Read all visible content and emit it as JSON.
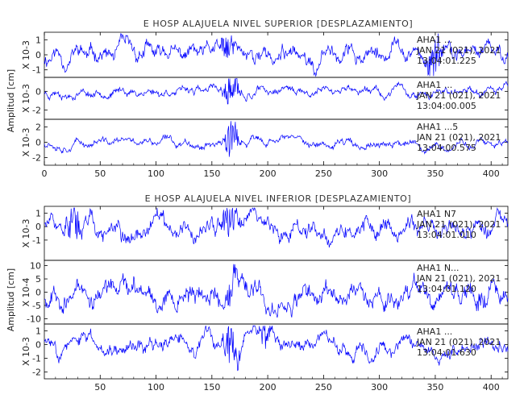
{
  "chart_data": [
    {
      "type": "line",
      "title": "E HOSP ALAJUELA NIVEL SUPERIOR [DESPLAZAMIENTO]",
      "ylabel": "Amplitud [cm]",
      "xlim": [
        0,
        415
      ],
      "xticks": [
        0,
        50,
        100,
        150,
        200,
        250,
        300,
        350,
        400
      ],
      "series_color": "#0000ff",
      "panels": [
        {
          "scale_label": "X 10-3",
          "ylim": [
            -1.5,
            1.5
          ],
          "yticks": [
            1,
            0,
            -1
          ],
          "annotation": [
            "AHA1 ...",
            "JAN 21 (021), 2021",
            "13:04:01.225"
          ],
          "events": [
            {
              "t": 162,
              "amp": 0.9
            },
            {
              "t": 347,
              "amp": 1.5
            }
          ],
          "base_amp": 0.45,
          "seed": 11
        },
        {
          "scale_label": "X 10-3",
          "ylim": [
            -3,
            1.5
          ],
          "yticks": [
            0,
            -2
          ],
          "annotation": [
            "AHA1 ...",
            "JAN 21 (021), 2021",
            "13:04:00.005"
          ],
          "events": [
            {
              "t": 165,
              "amp": 2.2
            }
          ],
          "base_amp": 0.35,
          "seed": 23
        },
        {
          "scale_label": "X 10-3",
          "ylim": [
            -3,
            3
          ],
          "yticks": [
            2,
            0,
            -2
          ],
          "annotation": [
            "AHA1 ...5",
            "JAN 21 (021), 2021",
            "13:04:00.575"
          ],
          "events": [
            {
              "t": 165,
              "amp": 2.8
            }
          ],
          "base_amp": 0.4,
          "seed": 37
        }
      ]
    },
    {
      "type": "line",
      "title": "E HOSP ALAJUELA NIVEL INFERIOR [DESPLAZAMIENTO]",
      "ylabel": "Amplitud [cm]",
      "xlim": [
        0,
        415
      ],
      "xticks": [
        50,
        100,
        150,
        200,
        250,
        300,
        350,
        400
      ],
      "series_color": "#0000ff",
      "panels": [
        {
          "scale_label": "X 10-3",
          "ylim": [
            -2.5,
            1.5
          ],
          "yticks": [
            1,
            0,
            -1
          ],
          "annotation": [
            "AHA1 N7",
            "JAN 21 (021), 2021",
            "13:04:01.010"
          ],
          "events": [
            {
              "t": 165,
              "amp": 1.7
            },
            {
              "t": 24,
              "amp": 1.2
            }
          ],
          "base_amp": 0.55,
          "seed": 51
        },
        {
          "scale_label": "X 10-4",
          "ylim": [
            -12,
            12
          ],
          "yticks": [
            10,
            5,
            0,
            -5,
            -10
          ],
          "annotation": [
            "AHA1 N...",
            "JAN 21 (021), 2021",
            "13:04:01.120"
          ],
          "events": [
            {
              "t": 167,
              "amp": 6
            },
            {
              "t": 390,
              "amp": 5
            }
          ],
          "base_amp": 3.2,
          "seed": 67
        },
        {
          "scale_label": "X 10-3",
          "ylim": [
            -2.5,
            1.5
          ],
          "yticks": [
            1,
            0,
            -1,
            -2
          ],
          "annotation": [
            "AHA1 ...",
            "JAN 21 (021), 2021",
            "13:04:01.630"
          ],
          "events": [
            {
              "t": 165,
              "amp": 1.6
            },
            {
              "t": 195,
              "amp": 1.0
            }
          ],
          "base_amp": 0.45,
          "seed": 83
        }
      ]
    }
  ]
}
